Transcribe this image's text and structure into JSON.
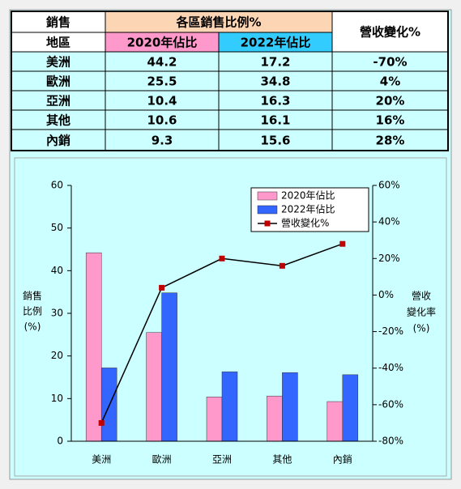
{
  "table": {
    "header": {
      "region": [
        "銷售",
        "地區"
      ],
      "share_title": "各區銷售比例%",
      "share_cols": [
        "2020年佔比",
        "2022年佔比"
      ],
      "change_title": "營收變化%"
    },
    "rows": [
      [
        "美洲",
        "44.2",
        "17.2",
        "-70%"
      ],
      [
        "歐洲",
        "25.5",
        "34.8",
        "4%"
      ],
      [
        "亞洲",
        "10.4",
        "16.3",
        "20%"
      ],
      [
        "其他",
        "10.6",
        "16.1",
        "16%"
      ],
      [
        "內銷",
        "9.3",
        "15.6",
        "28%"
      ]
    ]
  },
  "chart_data": {
    "type": "bar",
    "categories": [
      "美洲",
      "歐洲",
      "亞洲",
      "其他",
      "內銷"
    ],
    "series": [
      {
        "name": "2020年佔比",
        "color": "#ff99cc",
        "values": [
          44.2,
          25.5,
          10.4,
          10.6,
          9.3
        ]
      },
      {
        "name": "2022年佔比",
        "color": "#3366ff",
        "values": [
          17.2,
          34.8,
          16.3,
          16.1,
          15.6
        ]
      },
      {
        "name": "營收變化%",
        "type": "line",
        "axis": "y2",
        "color": "#000000",
        "marker_color": "#c00000",
        "values": [
          -70,
          4,
          20,
          16,
          28
        ]
      }
    ],
    "ylabel": [
      "銷售",
      "比例",
      "(%)"
    ],
    "y2label": [
      "營收",
      "變化率",
      "(%)"
    ],
    "ylim": [
      0,
      60
    ],
    "yticks": [
      0,
      10,
      20,
      30,
      40,
      50,
      60
    ],
    "y2lim": [
      -80,
      60
    ],
    "y2ticks": [
      {
        "value": -80,
        "label": "-80%"
      },
      {
        "value": -60,
        "label": "-60%"
      },
      {
        "value": -40,
        "label": "-40%"
      },
      {
        "value": -20,
        "label": "-20%"
      },
      {
        "value": 0,
        "label": "0%"
      },
      {
        "value": 20,
        "label": "20%"
      },
      {
        "value": 40,
        "label": "40%"
      },
      {
        "value": 60,
        "label": "60%"
      }
    ],
    "legend": "upper right"
  }
}
